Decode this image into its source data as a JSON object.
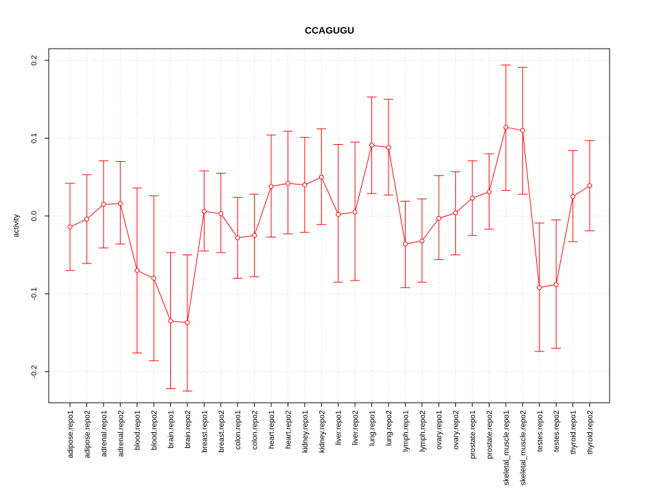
{
  "chart_data": {
    "type": "line",
    "title": "CCAGUGU",
    "xlabel": "",
    "ylabel": "activity",
    "ylim": [
      -0.24,
      0.215
    ],
    "yticks": [
      -0.2,
      -0.1,
      0.0,
      0.1,
      0.2
    ],
    "ytick_labels": [
      "-0.2",
      "-0.1",
      "0.0",
      "0.1",
      "0.2"
    ],
    "grid": true,
    "color": "#ff0000",
    "categories": [
      "adipose.repo1",
      "adipose.repo2",
      "adrenal.repo1",
      "adrenal.repo2",
      "blood.repo1",
      "blood.repo2",
      "brain.repo1",
      "brain.repo2",
      "breast.repo1",
      "breast.repo2",
      "colon.repo1",
      "colon.repo2",
      "heart.repo1",
      "heart.repo2",
      "kidney.repo1",
      "kidney.repo2",
      "liver.repo1",
      "liver.repo2",
      "lung.repo1",
      "lung.repo2",
      "lymph.repo1",
      "lymph.repo2",
      "ovary.repo1",
      "ovary.repo2",
      "prostate.repo1",
      "prostate.repo2",
      "skeletal_muscle.repo1",
      "skeletal_muscle.repo2",
      "testes.repo1",
      "testes.repo2",
      "thyroid.repo1",
      "thyroid.repo2"
    ],
    "values": [
      -0.014,
      -0.004,
      0.015,
      0.016,
      -0.07,
      -0.08,
      -0.135,
      -0.137,
      0.006,
      0.003,
      -0.028,
      -0.025,
      0.038,
      0.042,
      0.04,
      0.05,
      0.002,
      0.005,
      0.091,
      0.088,
      -0.036,
      -0.032,
      -0.003,
      0.004,
      0.023,
      0.031,
      0.114,
      0.11,
      -0.092,
      -0.088,
      0.025,
      0.039
    ],
    "upper": [
      0.042,
      0.053,
      0.071,
      0.07,
      0.036,
      0.026,
      -0.047,
      -0.05,
      0.058,
      0.055,
      0.024,
      0.028,
      0.104,
      0.109,
      0.101,
      0.112,
      0.092,
      0.095,
      0.153,
      0.15,
      0.019,
      0.022,
      0.052,
      0.057,
      0.071,
      0.08,
      0.194,
      0.191,
      -0.009,
      -0.005,
      0.084,
      0.097
    ],
    "lower": [
      -0.07,
      -0.061,
      -0.041,
      -0.036,
      -0.176,
      -0.186,
      -0.222,
      -0.225,
      -0.045,
      -0.047,
      -0.08,
      -0.078,
      -0.027,
      -0.023,
      -0.021,
      -0.011,
      -0.085,
      -0.083,
      0.029,
      0.027,
      -0.092,
      -0.085,
      -0.056,
      -0.05,
      -0.025,
      -0.017,
      0.033,
      0.028,
      -0.174,
      -0.17,
      -0.033,
      -0.019
    ]
  }
}
